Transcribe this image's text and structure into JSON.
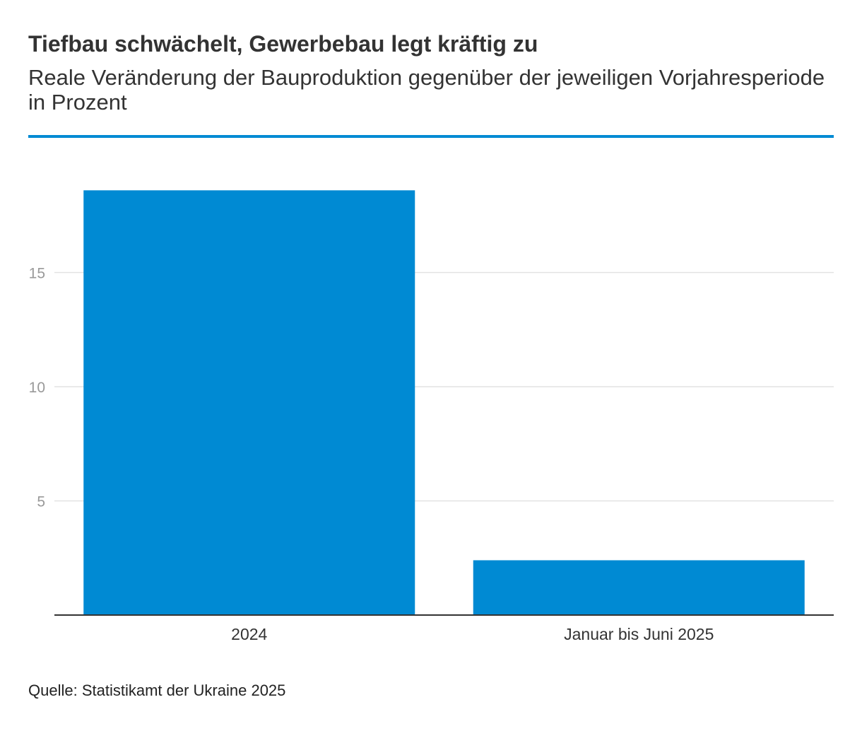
{
  "header": {
    "title": "Tiefbau schwächelt, Gewerbebau legt kräftig zu",
    "subtitle": "Reale Veränderung der Bauproduktion gegenüber der jeweiligen Vorjahresperiode in Prozent"
  },
  "footer": {
    "source": "Quelle: Statistikamt der Ukraine 2025"
  },
  "colors": {
    "accent": "#008ad3",
    "bar": "#008ad3",
    "grid": "#e2e2e2",
    "axis": "#333333",
    "tick_label": "#999999",
    "category_label": "#333333"
  },
  "chart_data": {
    "type": "bar",
    "title": "Tiefbau schwächelt, Gewerbebau legt kräftig zu",
    "subtitle": "Reale Veränderung der Bauproduktion gegenüber der jeweiligen Vorjahresperiode in Prozent",
    "categories": [
      "2024",
      "Januar bis Juni 2025"
    ],
    "values": [
      18.6,
      2.4
    ],
    "xlabel": "",
    "ylabel": "",
    "ylim": [
      0,
      20
    ],
    "yticks": [
      5,
      10,
      15
    ],
    "grid": true,
    "legend": "none",
    "source": "Quelle: Statistikamt der Ukraine 2025"
  }
}
